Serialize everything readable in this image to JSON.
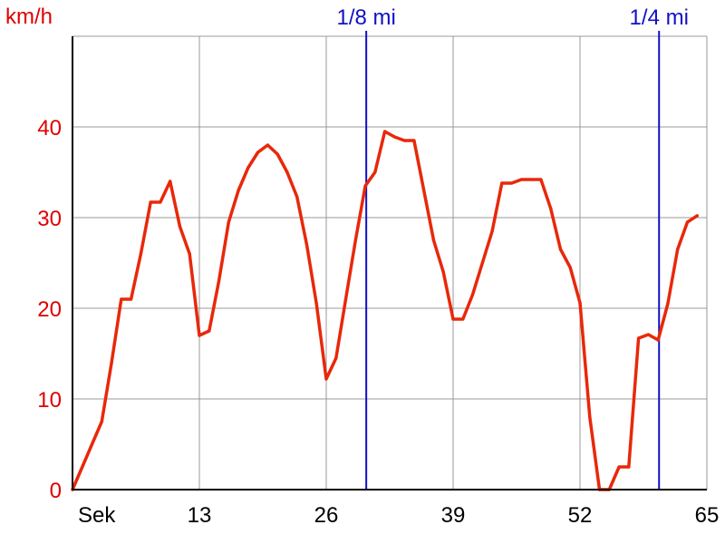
{
  "chart_data": {
    "type": "line",
    "ylabel": "km/h",
    "xlabel": "Sek",
    "xlim": [
      0,
      65
    ],
    "ylim": [
      0,
      50
    ],
    "grid": true,
    "x_tick_labels": [
      "Sek",
      "13",
      "26",
      "39",
      "52",
      "65"
    ],
    "y_tick_labels": [
      "0",
      "10",
      "20",
      "30",
      "40"
    ],
    "x_ticks": [
      0,
      13,
      26,
      39,
      52,
      65
    ],
    "y_ticks": [
      0,
      10,
      20,
      30,
      40
    ],
    "markers": [
      {
        "label": "1/8 mi",
        "x": 30.1
      },
      {
        "label": "1/4 mi",
        "x": 60.1
      }
    ],
    "series": [
      {
        "color": "#e8280a",
        "x": [
          0,
          1,
          2,
          3,
          4,
          5,
          6,
          7,
          8,
          9,
          10,
          11,
          12,
          13,
          14,
          15,
          16,
          17,
          18,
          19,
          20,
          21,
          22,
          23,
          24,
          25,
          26,
          27,
          28,
          29,
          30,
          31,
          32,
          33,
          34,
          35,
          36,
          37,
          38,
          39,
          40,
          41,
          42,
          43,
          44,
          45,
          46,
          47,
          48,
          49,
          50,
          51,
          52,
          53,
          54,
          55,
          56,
          57,
          58,
          59,
          60,
          61,
          62,
          63,
          64
        ],
        "values": [
          0,
          2.5,
          5,
          7.5,
          14,
          21,
          21,
          26,
          31.7,
          31.7,
          34,
          29,
          26,
          17,
          17.5,
          23,
          29.5,
          33,
          35.5,
          37.2,
          38,
          37,
          35,
          32.3,
          27,
          20.5,
          12.2,
          14.5,
          21,
          27.5,
          33.5,
          35,
          39.5,
          38.9,
          38.5,
          38.5,
          33,
          27.5,
          24,
          18.8,
          18.8,
          21.5,
          25,
          28.5,
          33.8,
          33.8,
          34.2,
          34.2,
          34.2,
          31,
          26.5,
          24.5,
          20.6,
          8,
          0,
          0,
          2.5,
          2.5,
          16.7,
          17.1,
          16.5,
          20.5,
          26.5,
          29.5,
          30.2
        ]
      }
    ]
  }
}
